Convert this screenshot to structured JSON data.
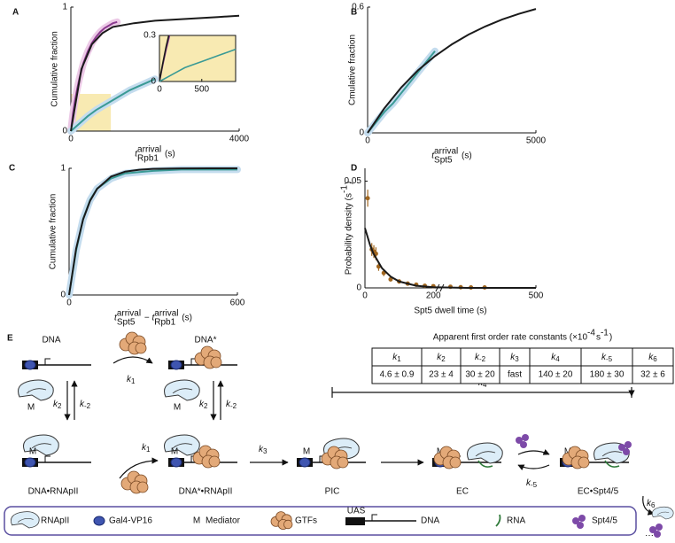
{
  "chart_data": [
    {
      "type": "line",
      "panel": "A",
      "ylabel": [
        {
          "text": "Cumulative fraction"
        }
      ],
      "xlabel": [
        {
          "text": "t",
          "sup": "arrival",
          "sub": "Rpb1"
        },
        {
          "text": " (s)"
        }
      ],
      "xlim": [
        0,
        4000
      ],
      "ylim": [
        0,
        1
      ],
      "xticks": [
        0,
        4000
      ],
      "yticks": [
        0,
        1
      ],
      "highlight": {
        "xlim": [
          0,
          950
        ],
        "ylim": [
          0,
          0.3
        ],
        "color": "#f8eab2"
      },
      "series": [
        {
          "color": "#8b3a8f",
          "band_color": "#ecc9e6",
          "x": [
            0,
            50,
            100,
            150,
            200,
            300,
            400,
            500,
            600,
            700,
            800,
            900,
            1000,
            1100
          ],
          "values": [
            0,
            0.14,
            0.25,
            0.34,
            0.42,
            0.55,
            0.64,
            0.71,
            0.76,
            0.8,
            0.83,
            0.85,
            0.87,
            0.88
          ]
        },
        {
          "color": "#3a9a95",
          "band_color": "#c4dcee",
          "x": [
            0,
            200,
            400,
            600,
            800,
            1000,
            1200,
            1400,
            1600,
            1800,
            2000
          ],
          "values": [
            0,
            0.06,
            0.12,
            0.17,
            0.21,
            0.25,
            0.29,
            0.33,
            0.36,
            0.39,
            0.42
          ]
        },
        {
          "color": "#1a1a1a",
          "x": [
            0,
            250,
            500,
            750,
            1000,
            1500,
            2000,
            2500,
            3000,
            3500,
            4000
          ],
          "values": [
            0,
            0.5,
            0.7,
            0.79,
            0.84,
            0.87,
            0.89,
            0.9,
            0.91,
            0.92,
            0.93
          ]
        }
      ],
      "inset": {
        "type": "line",
        "xlim": [
          0,
          900
        ],
        "ylim": [
          0,
          0.3
        ],
        "xticks": [
          0,
          500
        ],
        "yticks": [
          0,
          0.3
        ],
        "background": "#f8eab2",
        "series": [
          {
            "color": "#8b3a8f",
            "x": [
              0,
              40,
              80,
              120
            ],
            "values": [
              0,
              0.11,
              0.21,
              0.3
            ]
          },
          {
            "color": "#1a1a1a",
            "x": [
              0,
              40,
              80,
              110
            ],
            "values": [
              0,
              0.12,
              0.23,
              0.3
            ]
          },
          {
            "color": "#3a9a95",
            "x": [
              0,
              100,
              200,
              300,
              400,
              500,
              600,
              700,
              800,
              900
            ],
            "values": [
              0,
              0.03,
              0.06,
              0.09,
              0.11,
              0.13,
              0.15,
              0.17,
              0.19,
              0.21
            ]
          }
        ]
      }
    },
    {
      "type": "line",
      "panel": "B",
      "ylabel": [
        {
          "text": "Cmulative fraction"
        }
      ],
      "xlabel": [
        {
          "text": "t",
          "sup": "arrival",
          "sub": "Spt5"
        },
        {
          "text": " (s)"
        }
      ],
      "xlim": [
        0,
        5000
      ],
      "ylim": [
        0,
        0.6
      ],
      "xticks": [
        0,
        5000
      ],
      "yticks": [
        0,
        0.6
      ],
      "series": [
        {
          "color": "#3a9a95",
          "band_color": "#c4dcee",
          "x": [
            0,
            250,
            500,
            750,
            1000,
            1250,
            1500,
            1750,
            2000
          ],
          "values": [
            0,
            0.05,
            0.1,
            0.14,
            0.19,
            0.24,
            0.29,
            0.34,
            0.39
          ]
        },
        {
          "color": "#1a1a1a",
          "x": [
            0,
            500,
            1000,
            1500,
            2000,
            2500,
            3000,
            3500,
            4000,
            4500,
            5000
          ],
          "values": [
            0,
            0.118,
            0.217,
            0.299,
            0.366,
            0.422,
            0.469,
            0.508,
            0.541,
            0.568,
            0.591
          ]
        }
      ]
    },
    {
      "type": "line",
      "panel": "C",
      "ylabel": [
        {
          "text": "Cumulative fraction"
        }
      ],
      "xlabel": [
        {
          "text": "t",
          "sup": "arrival",
          "sub": "Spt5"
        },
        {
          "text": " − "
        },
        {
          "text": "t",
          "sup": "arrival",
          "sub": "Rpb1"
        },
        {
          "text": " (s)"
        }
      ],
      "xlim": [
        0,
        600
      ],
      "ylim": [
        0,
        1
      ],
      "xticks": [
        0,
        600
      ],
      "yticks": [
        0,
        1
      ],
      "series": [
        {
          "color": "#3a9a95",
          "band_color": "#c4dcee",
          "x": [
            0,
            25,
            50,
            75,
            100,
            150,
            200,
            250,
            300,
            400,
            500,
            600
          ],
          "values": [
            0,
            0.35,
            0.6,
            0.75,
            0.84,
            0.92,
            0.96,
            0.97,
            0.98,
            0.99,
            0.99,
            0.99
          ]
        },
        {
          "color": "#1a1a1a",
          "x": [
            0,
            25,
            50,
            75,
            100,
            150,
            200,
            250,
            300,
            400,
            500,
            600
          ],
          "values": [
            0,
            0.365,
            0.597,
            0.744,
            0.838,
            0.935,
            0.974,
            0.989,
            0.996,
            0.999,
            1,
            1
          ]
        }
      ]
    },
    {
      "type": "scatter",
      "panel": "D",
      "ylabel": [
        {
          "text": "Probability density (s"
        },
        {
          "sup": "-1"
        },
        {
          "text": ")"
        }
      ],
      "xlabel": [
        {
          "text": "Spt5 dwell time (s)"
        }
      ],
      "xlim": [
        0,
        500
      ],
      "ylim": [
        0,
        0.056
      ],
      "xticks": [
        0,
        200,
        500
      ],
      "yticks": [
        0,
        0.05
      ],
      "x_break": 220,
      "series": [
        {
          "color": "#a0661f",
          "mark": "points",
          "x": [
            8,
            20,
            26,
            32,
            40,
            55,
            75,
            100,
            125,
            150,
            175,
            200,
            250,
            280,
            310,
            350
          ],
          "values": [
            0.042,
            0.018,
            0.017,
            0.016,
            0.01,
            0.007,
            0.004,
            0.003,
            0.002,
            0.0015,
            0.001,
            0.0008,
            0.0005,
            0.0003,
            0.0002,
            0.0002
          ],
          "errors": [
            0.004,
            0.003,
            0.003,
            0.003,
            0.002,
            0.0015,
            0.001,
            0.001,
            0.0008,
            0.0006,
            0.0005,
            0.0004,
            0.0003,
            0.0002,
            0.0002,
            0.0002
          ]
        },
        {
          "color": "#1a1a1a",
          "mark": "line",
          "x": [
            0,
            15,
            25,
            50,
            75,
            100,
            150,
            200,
            300,
            400,
            500
          ],
          "values": [
            0.028,
            0.02,
            0.016,
            0.0092,
            0.0053,
            0.003,
            0.001,
            0.0003,
            0,
            0,
            0
          ]
        }
      ]
    }
  ],
  "diagram": {
    "panel": "E",
    "rate_symbol": "k",
    "mediator": "M",
    "uas": "UAS",
    "ellipsis": "⋯",
    "species": [
      "DNA",
      "DNA*",
      "DNA•RNApII",
      "DNA*•RNApII",
      "PIC",
      "EC",
      "EC•Spt4/5"
    ],
    "rates": [
      "1",
      "2",
      "-2",
      "2",
      "-2",
      "1",
      "3",
      "4",
      "-5",
      "6"
    ],
    "table": {
      "title": [
        {
          "text": "Apparent first order rate constants (×10"
        },
        {
          "sup": "-4"
        },
        {
          "text": "s"
        },
        {
          "sup": "-1"
        },
        {
          "text": ")"
        }
      ],
      "headers": [
        "1",
        "2",
        "-2",
        "3",
        "4",
        "-5",
        "6"
      ],
      "values": [
        "4.6 ± 0.9",
        "23 ± 4",
        "30 ± 20",
        "fast",
        "140 ± 20",
        "180 ± 30",
        "32 ± 6"
      ]
    },
    "legend": [
      "RNApII",
      "Gal4-VP16",
      "Mediator",
      "GTFs",
      "DNA",
      "RNA",
      "Spt4/5"
    ]
  }
}
